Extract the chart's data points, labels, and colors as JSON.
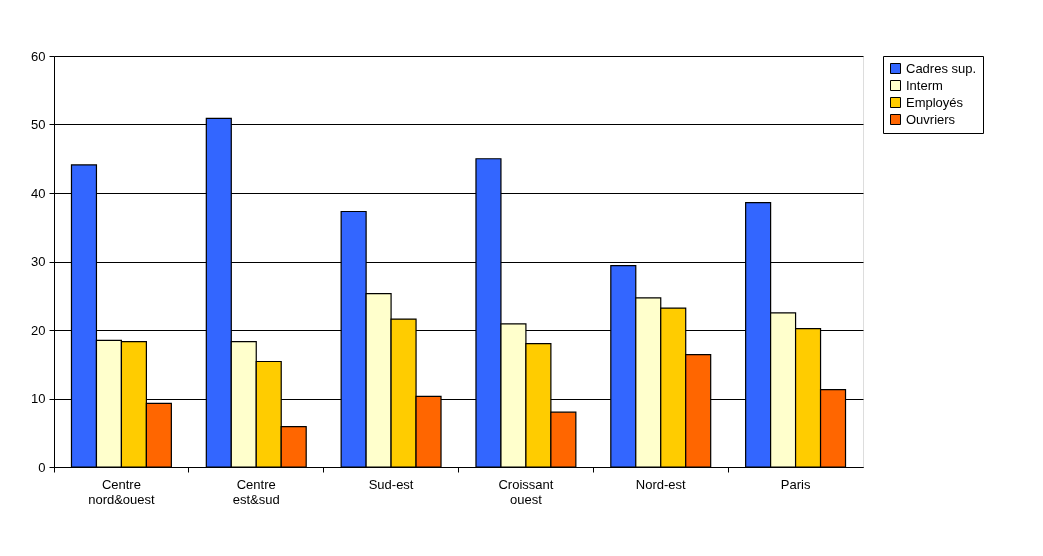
{
  "chart_data": {
    "type": "bar",
    "categories": [
      "Centre nord&ouest",
      "Centre est&sud",
      "Sud-est",
      "Croissant ouest",
      "Nord-est",
      "Paris"
    ],
    "series": [
      {
        "name": "Cadres sup.",
        "color": "#3366ff",
        "values": [
          44.1,
          50.9,
          37.3,
          45.0,
          29.4,
          38.6
        ]
      },
      {
        "name": "Interm",
        "color": "#ffffcc",
        "values": [
          18.5,
          18.3,
          25.3,
          20.9,
          24.7,
          22.5
        ]
      },
      {
        "name": "Employés",
        "color": "#ffcc00",
        "values": [
          18.3,
          15.4,
          21.6,
          18.0,
          23.2,
          20.2
        ]
      },
      {
        "name": "Ouvriers",
        "color": "#ff6600",
        "values": [
          9.3,
          5.9,
          10.3,
          8.0,
          16.4,
          11.3
        ]
      }
    ],
    "ylim": [
      0,
      60
    ],
    "yticks": [
      0,
      10,
      20,
      30,
      40,
      50,
      60
    ],
    "grid": "y",
    "legend": "right"
  }
}
